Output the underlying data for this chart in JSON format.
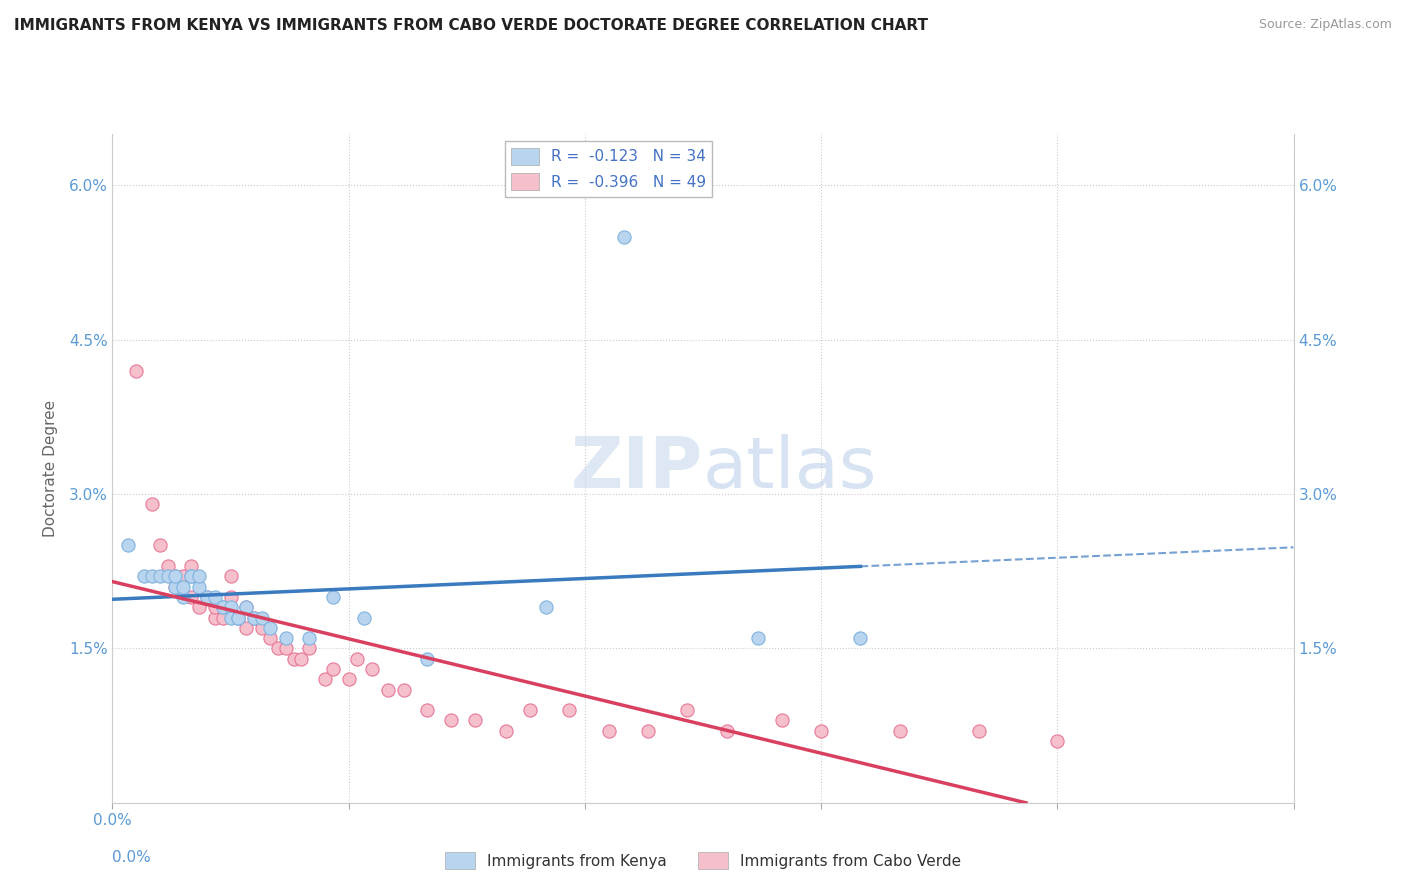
{
  "title": "IMMIGRANTS FROM KENYA VS IMMIGRANTS FROM CABO VERDE DOCTORATE DEGREE CORRELATION CHART",
  "source": "Source: ZipAtlas.com",
  "ylabel": "Doctorate Degree",
  "xlim": [
    0.0,
    0.15
  ],
  "ylim": [
    0.0,
    0.065
  ],
  "xticks": [
    0.0,
    0.03,
    0.06,
    0.09,
    0.12,
    0.15
  ],
  "yticks": [
    0.0,
    0.015,
    0.03,
    0.045,
    0.06
  ],
  "legend_entry1": "R =  -0.123   N = 34",
  "legend_entry2": "R =  -0.396   N = 49",
  "legend_label1": "Immigrants from Kenya",
  "legend_label2": "Immigrants from Cabo Verde",
  "kenya_color": "#b8d4ee",
  "kenya_edge_color": "#7fb3e0",
  "cabo_color": "#f5bfcc",
  "cabo_edge_color": "#e87898",
  "kenya_line_color": "#3a7abf",
  "cabo_line_color": "#d94060",
  "background_color": "#ffffff",
  "grid_color": "#cccccc",
  "tick_color": "#5b9bd5",
  "kenya_x": [
    0.002,
    0.004,
    0.005,
    0.006,
    0.007,
    0.008,
    0.008,
    0.009,
    0.009,
    0.01,
    0.01,
    0.011,
    0.011,
    0.012,
    0.013,
    0.014,
    0.014,
    0.015,
    0.015,
    0.016,
    0.016,
    0.017,
    0.018,
    0.019,
    0.02,
    0.022,
    0.025,
    0.028,
    0.032,
    0.04,
    0.055,
    0.065,
    0.082,
    0.095
  ],
  "kenya_y": [
    0.025,
    0.022,
    0.022,
    0.022,
    0.022,
    0.021,
    0.022,
    0.02,
    0.021,
    0.022,
    0.022,
    0.021,
    0.022,
    0.02,
    0.02,
    0.019,
    0.019,
    0.019,
    0.018,
    0.018,
    0.018,
    0.019,
    0.018,
    0.018,
    0.017,
    0.016,
    0.016,
    0.02,
    0.018,
    0.014,
    0.019,
    0.055,
    0.016,
    0.016
  ],
  "cabo_x": [
    0.003,
    0.005,
    0.006,
    0.007,
    0.008,
    0.008,
    0.009,
    0.01,
    0.01,
    0.011,
    0.012,
    0.013,
    0.013,
    0.014,
    0.015,
    0.015,
    0.016,
    0.017,
    0.017,
    0.018,
    0.019,
    0.02,
    0.021,
    0.022,
    0.023,
    0.024,
    0.025,
    0.027,
    0.028,
    0.03,
    0.031,
    0.033,
    0.035,
    0.037,
    0.04,
    0.043,
    0.046,
    0.05,
    0.053,
    0.058,
    0.063,
    0.068,
    0.073,
    0.078,
    0.085,
    0.09,
    0.1,
    0.11,
    0.12
  ],
  "cabo_y": [
    0.042,
    0.029,
    0.025,
    0.023,
    0.022,
    0.021,
    0.022,
    0.02,
    0.023,
    0.019,
    0.02,
    0.018,
    0.019,
    0.018,
    0.022,
    0.02,
    0.018,
    0.017,
    0.019,
    0.018,
    0.017,
    0.016,
    0.015,
    0.015,
    0.014,
    0.014,
    0.015,
    0.012,
    0.013,
    0.012,
    0.014,
    0.013,
    0.011,
    0.011,
    0.009,
    0.008,
    0.008,
    0.007,
    0.009,
    0.009,
    0.007,
    0.007,
    0.009,
    0.007,
    0.008,
    0.007,
    0.007,
    0.007,
    0.006
  ]
}
